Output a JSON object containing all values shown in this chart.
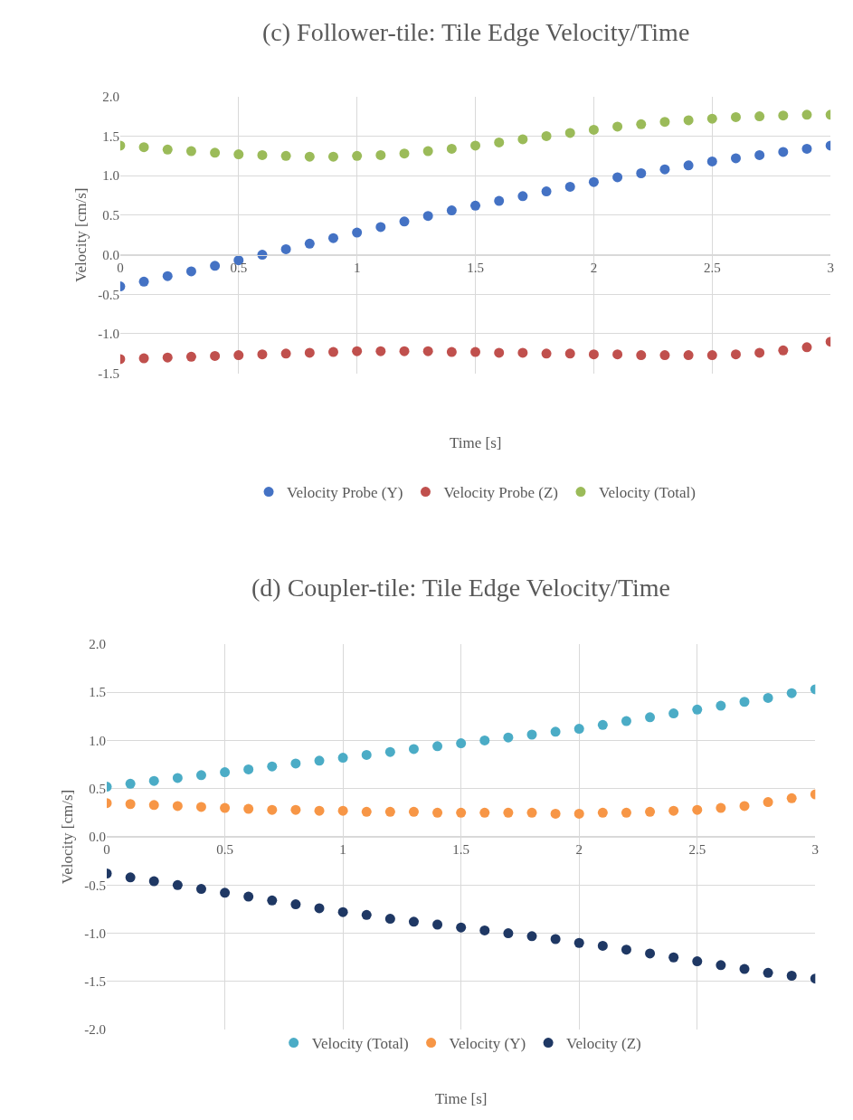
{
  "chart_data": [
    {
      "type": "scatter",
      "title": "(c) Follower-tile: Tile Edge Velocity/Time",
      "xlabel": "Time [s]",
      "ylabel": "Velocity [cm/s]",
      "x": [
        0,
        0.1,
        0.2,
        0.3,
        0.4,
        0.5,
        0.6,
        0.7,
        0.8,
        0.9,
        1.0,
        1.1,
        1.2,
        1.3,
        1.4,
        1.5,
        1.6,
        1.7,
        1.8,
        1.9,
        2.0,
        2.1,
        2.2,
        2.3,
        2.4,
        2.5,
        2.6,
        2.7,
        2.8,
        2.9,
        3.0
      ],
      "series": [
        {
          "name": "Velocity Probe (Y)",
          "color": "#4472c4",
          "values": [
            -0.4,
            -0.34,
            -0.27,
            -0.21,
            -0.14,
            -0.07,
            0.0,
            0.07,
            0.14,
            0.21,
            0.28,
            0.35,
            0.42,
            0.49,
            0.56,
            0.62,
            0.68,
            0.74,
            0.8,
            0.86,
            0.92,
            0.98,
            1.03,
            1.08,
            1.13,
            1.18,
            1.22,
            1.26,
            1.3,
            1.34,
            1.38
          ]
        },
        {
          "name": "Velocity Probe (Z)",
          "color": "#c0504d",
          "values": [
            -1.32,
            -1.31,
            -1.3,
            -1.29,
            -1.28,
            -1.27,
            -1.26,
            -1.25,
            -1.24,
            -1.23,
            -1.22,
            -1.22,
            -1.22,
            -1.22,
            -1.23,
            -1.23,
            -1.24,
            -1.24,
            -1.25,
            -1.25,
            -1.26,
            -1.26,
            -1.27,
            -1.27,
            -1.27,
            -1.27,
            -1.26,
            -1.24,
            -1.21,
            -1.17,
            -1.1
          ]
        },
        {
          "name": "Velocity (Total)",
          "color": "#9bbb59",
          "values": [
            1.38,
            1.36,
            1.33,
            1.31,
            1.29,
            1.27,
            1.26,
            1.25,
            1.24,
            1.24,
            1.25,
            1.26,
            1.28,
            1.31,
            1.34,
            1.38,
            1.42,
            1.46,
            1.5,
            1.54,
            1.58,
            1.62,
            1.65,
            1.68,
            1.7,
            1.72,
            1.74,
            1.75,
            1.76,
            1.77,
            1.77
          ]
        }
      ],
      "xlim": [
        0,
        3
      ],
      "xticks": [
        0,
        0.5,
        1,
        1.5,
        2,
        2.5,
        3
      ],
      "ylim": [
        -1.5,
        2.0
      ],
      "yticks": [
        {
          "value": -1.5,
          "label": "-1.5"
        },
        {
          "value": -1.0,
          "label": "-1.0"
        },
        {
          "value": -0.5,
          "label": "-0.5"
        },
        {
          "value": 0,
          "label": "0.0"
        },
        {
          "value": 0.5,
          "label": "0.5"
        },
        {
          "value": 1.0,
          "label": "1.0"
        },
        {
          "value": 1.5,
          "label": "1.5"
        },
        {
          "value": 2.0,
          "label": "2.0"
        }
      ],
      "grid": true,
      "legend": "bottom",
      "marker": "circle",
      "line_style": "none"
    },
    {
      "type": "scatter",
      "title": "(d) Coupler-tile: Tile Edge Velocity/Time",
      "xlabel": "Time [s]",
      "ylabel": "Velocity [cm/s]",
      "x": [
        0,
        0.1,
        0.2,
        0.3,
        0.4,
        0.5,
        0.6,
        0.7,
        0.8,
        0.9,
        1.0,
        1.1,
        1.2,
        1.3,
        1.4,
        1.5,
        1.6,
        1.7,
        1.8,
        1.9,
        2.0,
        2.1,
        2.2,
        2.3,
        2.4,
        2.5,
        2.6,
        2.7,
        2.8,
        2.9,
        3.0
      ],
      "series": [
        {
          "name": "Velocity (Total)",
          "color": "#4bacc6",
          "values": [
            0.52,
            0.55,
            0.58,
            0.61,
            0.64,
            0.67,
            0.7,
            0.73,
            0.76,
            0.79,
            0.82,
            0.85,
            0.88,
            0.91,
            0.94,
            0.97,
            1.0,
            1.03,
            1.06,
            1.09,
            1.12,
            1.16,
            1.2,
            1.24,
            1.28,
            1.32,
            1.36,
            1.4,
            1.44,
            1.49,
            1.53
          ]
        },
        {
          "name": "Velocity (Y)",
          "color": "#f79646",
          "values": [
            0.35,
            0.34,
            0.33,
            0.32,
            0.31,
            0.3,
            0.29,
            0.28,
            0.28,
            0.27,
            0.27,
            0.26,
            0.26,
            0.26,
            0.25,
            0.25,
            0.25,
            0.25,
            0.25,
            0.24,
            0.24,
            0.25,
            0.25,
            0.26,
            0.27,
            0.28,
            0.3,
            0.32,
            0.36,
            0.4,
            0.44
          ]
        },
        {
          "name": "Velocity (Z)",
          "color": "#1f3864",
          "values": [
            -0.38,
            -0.42,
            -0.46,
            -0.5,
            -0.54,
            -0.58,
            -0.62,
            -0.66,
            -0.7,
            -0.74,
            -0.78,
            -0.81,
            -0.85,
            -0.88,
            -0.91,
            -0.94,
            -0.97,
            -1.0,
            -1.03,
            -1.06,
            -1.1,
            -1.13,
            -1.17,
            -1.21,
            -1.25,
            -1.29,
            -1.33,
            -1.37,
            -1.41,
            -1.44,
            -1.47
          ]
        }
      ],
      "xlim": [
        0,
        3
      ],
      "xticks": [
        0,
        0.5,
        1,
        1.5,
        2,
        2.5,
        3
      ],
      "ylim": [
        -2.0,
        2.0
      ],
      "yticks": [
        {
          "value": -2.0,
          "label": "-2.0"
        },
        {
          "value": -1.5,
          "label": "-1.5"
        },
        {
          "value": -1.0,
          "label": "-1.0"
        },
        {
          "value": -0.5,
          "label": "-0.5"
        },
        {
          "value": 0,
          "label": "0.0"
        },
        {
          "value": 0.5,
          "label": "0.5"
        },
        {
          "value": 1.0,
          "label": "1.0"
        },
        {
          "value": 1.5,
          "label": "1.5"
        },
        {
          "value": 2.0,
          "label": "2.0"
        }
      ],
      "grid": true,
      "legend": "bottom",
      "marker": "circle",
      "line_style": "none"
    }
  ]
}
